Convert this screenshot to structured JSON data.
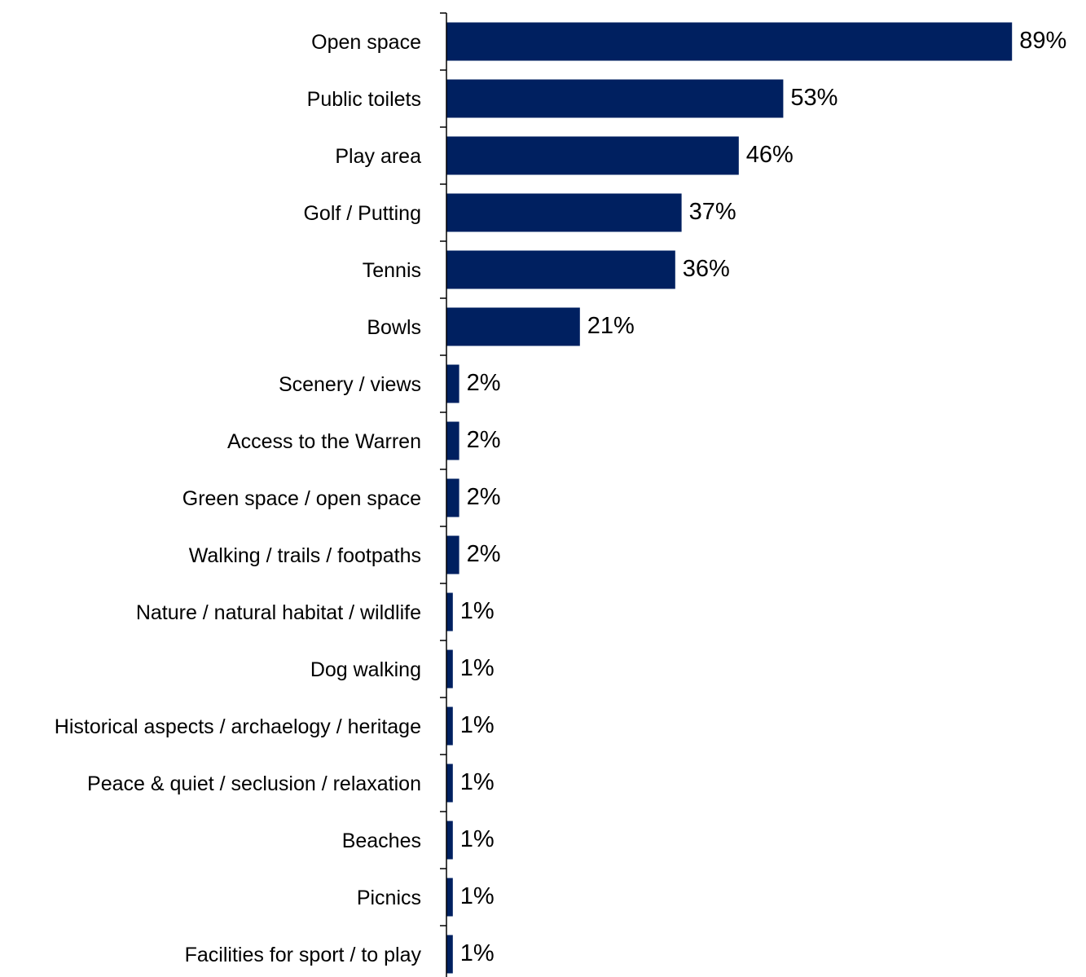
{
  "chart_data": {
    "type": "bar",
    "orientation": "horizontal",
    "categories": [
      "Open space",
      "Public toilets",
      "Play area",
      "Golf / Putting",
      "Tennis",
      "Bowls",
      "Scenery / views",
      "Access to the Warren",
      "Green space / open space",
      "Walking / trails / footpaths",
      "Nature / natural habitat / wildlife",
      "Dog walking",
      "Historical aspects / archaelogy / heritage",
      "Peace & quiet / seclusion / relaxation",
      "Beaches",
      "Picnics",
      "Facilities for sport / to play"
    ],
    "values": [
      89,
      53,
      46,
      37,
      36,
      21,
      2,
      2,
      2,
      2,
      1,
      1,
      1,
      1,
      1,
      1,
      1
    ],
    "value_labels": [
      "89%",
      "53%",
      "46%",
      "37%",
      "36%",
      "21%",
      "2%",
      "2%",
      "2%",
      "2%",
      "1%",
      "1%",
      "1%",
      "1%",
      "1%",
      "1%",
      "1%"
    ],
    "unit": "%",
    "xlim": [
      0,
      100
    ],
    "grid": false,
    "legend": "none",
    "bar_color": "#002060"
  }
}
